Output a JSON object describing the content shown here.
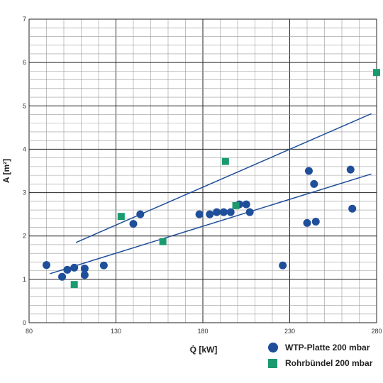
{
  "chart_data": {
    "type": "scatter",
    "xlabel": "Q̇ [kW]",
    "ylabel": "A [m²]",
    "xlim": [
      80,
      280
    ],
    "ylim": [
      0,
      7
    ],
    "x_ticks": [
      80,
      130,
      180,
      230,
      280
    ],
    "y_ticks": [
      0,
      1,
      2,
      3,
      4,
      5,
      6,
      7
    ],
    "x_minor_step": 10,
    "y_minor_step": 0.2,
    "grid": true,
    "legend_position": "bottom-right",
    "series": [
      {
        "name": "WTP-Platte 200 mbar",
        "marker": "circle",
        "color": "#1f4e9a",
        "points": [
          [
            90,
            1.33
          ],
          [
            99,
            1.06
          ],
          [
            102,
            1.22
          ],
          [
            106,
            1.27
          ],
          [
            112,
            1.1
          ],
          [
            112,
            1.25
          ],
          [
            123,
            1.32
          ],
          [
            140,
            2.28
          ],
          [
            144,
            2.5
          ],
          [
            178,
            2.5
          ],
          [
            184,
            2.5
          ],
          [
            188,
            2.55
          ],
          [
            192,
            2.55
          ],
          [
            196,
            2.55
          ],
          [
            201,
            2.73
          ],
          [
            205,
            2.73
          ],
          [
            207,
            2.55
          ],
          [
            226,
            1.32
          ],
          [
            240,
            2.3
          ],
          [
            241,
            3.5
          ],
          [
            244,
            3.2
          ],
          [
            245,
            2.33
          ],
          [
            265,
            3.53
          ],
          [
            266,
            2.63
          ]
        ],
        "trend": [
          [
            92,
            1.13
          ],
          [
            277,
            3.43
          ]
        ]
      },
      {
        "name": "Rohrbündel 200 mbar",
        "marker": "square",
        "color": "#1a9a6e",
        "points": [
          [
            106,
            0.88
          ],
          [
            133,
            2.45
          ],
          [
            157,
            1.87
          ],
          [
            193,
            3.72
          ],
          [
            199,
            2.7
          ],
          [
            280,
            5.77
          ]
        ],
        "trend": [
          [
            107,
            1.85
          ],
          [
            277,
            4.82
          ]
        ]
      }
    ]
  }
}
